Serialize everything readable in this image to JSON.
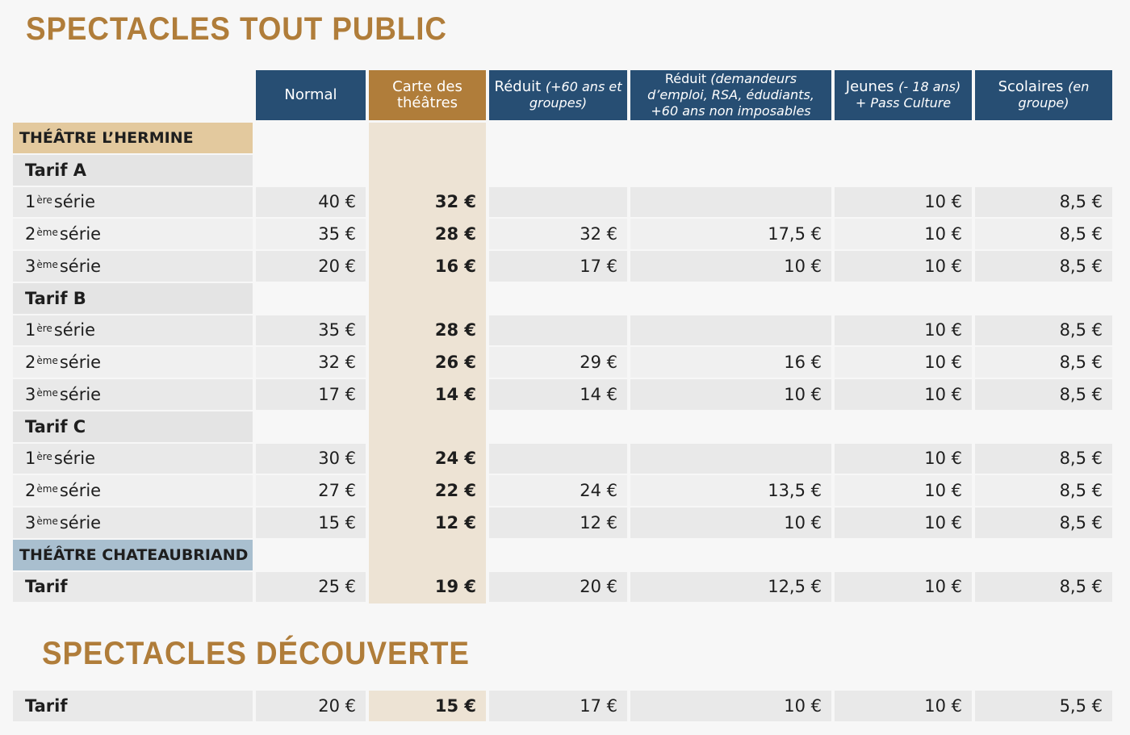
{
  "titles": {
    "main": "SPECTACLES TOUT PUBLIC",
    "discovery": "SPECTACLES DÉCOUVERTE"
  },
  "headers": [
    {
      "main": "Normal",
      "italic": ""
    },
    {
      "main": "Carte des théâtres",
      "italic": ""
    },
    {
      "main": "Réduit",
      "italic": "(+60 ans et groupes)"
    },
    {
      "main": "Réduit",
      "italic": "(demandeurs d’emploi, RSA, édudiants, +60 ans non imposables"
    },
    {
      "main": "Jeunes",
      "italic": "(- 18 ans) + Pass Culture"
    },
    {
      "main": "Scolaires",
      "italic": "(en groupe)"
    }
  ],
  "rows": [
    {
      "type": "theatre",
      "label": "THÉÂTRE L’HERMINE",
      "color": "#e3c99e"
    },
    {
      "type": "tarif",
      "label": "Tarif A"
    },
    {
      "type": "serie",
      "num": "1",
      "sup": "ère",
      "word": "série",
      "values": [
        "40 €",
        "32 €",
        "",
        "",
        "10 €",
        "8,5 €"
      ]
    },
    {
      "type": "serie",
      "num": "2",
      "sup": "ème",
      "word": "série",
      "values": [
        "35 €",
        "28 €",
        "32 €",
        "17,5 €",
        "10 €",
        "8,5 €"
      ]
    },
    {
      "type": "serie",
      "num": "3",
      "sup": "ème",
      "word": "série",
      "values": [
        "20 €",
        "16 €",
        "17 €",
        "10 €",
        "10 €",
        "8,5 €"
      ]
    },
    {
      "type": "tarif",
      "label": "Tarif B"
    },
    {
      "type": "serie",
      "num": "1",
      "sup": "ère",
      "word": "série",
      "values": [
        "35 €",
        "28 €",
        "",
        "",
        "10 €",
        "8,5 €"
      ]
    },
    {
      "type": "serie",
      "num": "2",
      "sup": "ème",
      "word": "série",
      "values": [
        "32 €",
        "26 €",
        "29 €",
        "16 €",
        "10 €",
        "8,5 €"
      ]
    },
    {
      "type": "serie",
      "num": "3",
      "sup": "ème",
      "word": "série",
      "values": [
        "17 €",
        "14 €",
        "14 €",
        "10 €",
        "10 €",
        "8,5 €"
      ]
    },
    {
      "type": "tarif",
      "label": "Tarif C"
    },
    {
      "type": "serie",
      "num": "1",
      "sup": "ère",
      "word": "série",
      "values": [
        "30 €",
        "24 €",
        "",
        "",
        "10 €",
        "8,5 €"
      ]
    },
    {
      "type": "serie",
      "num": "2",
      "sup": "ème",
      "word": "série",
      "values": [
        "27 €",
        "22 €",
        "24 €",
        "13,5 €",
        "10 €",
        "8,5 €"
      ]
    },
    {
      "type": "serie",
      "num": "3",
      "sup": "ème",
      "word": "série",
      "values": [
        "15 €",
        "12 €",
        "12 €",
        "10 €",
        "10 €",
        "8,5 €"
      ]
    },
    {
      "type": "theatre",
      "label": "THÉÂTRE CHATEAUBRIAND",
      "color": "#a9bfcf"
    },
    {
      "type": "tarifrow",
      "label": "Tarif",
      "values": [
        "25 €",
        "19 €",
        "20 €",
        "12,5 €",
        "10 €",
        "8,5 €"
      ]
    }
  ],
  "discovery_row": {
    "label": "Tarif",
    "values": [
      "20 €",
      "15 €",
      "17 €",
      "10 €",
      "10 €",
      "5,5 €"
    ]
  },
  "colors": {
    "header_blue": "#274e73",
    "header_gold": "#b07d3a",
    "title_gold": "#b07d3a",
    "carte_column": "#ede3d4"
  }
}
